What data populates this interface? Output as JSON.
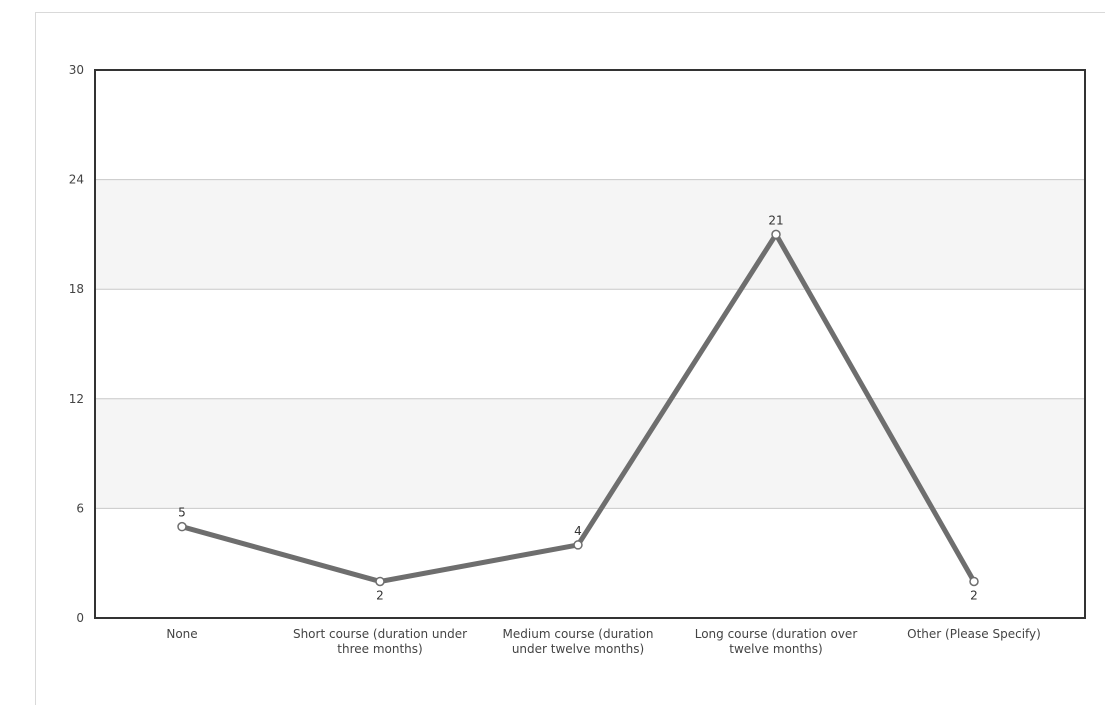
{
  "chart_data": {
    "type": "line",
    "categories": [
      [
        "None"
      ],
      [
        "Short course (duration under",
        "three months)"
      ],
      [
        "Medium course (duration",
        "under twelve months)"
      ],
      [
        "Long course (duration over",
        "twelve months)"
      ],
      [
        "Other (Please Specify)"
      ]
    ],
    "values": [
      5,
      2,
      4,
      21,
      2
    ],
    "ylim": [
      0,
      30
    ],
    "yticks": [
      0,
      6,
      12,
      18,
      24,
      30
    ],
    "grid": true,
    "alternating_bands": true,
    "colors": {
      "line": "#6e6e6e",
      "band": "#f5f5f5",
      "grid": "#c8c8c8",
      "axis": "#333333",
      "marker_fill": "#ffffff",
      "marker_stroke": "#6e6e6e"
    }
  }
}
